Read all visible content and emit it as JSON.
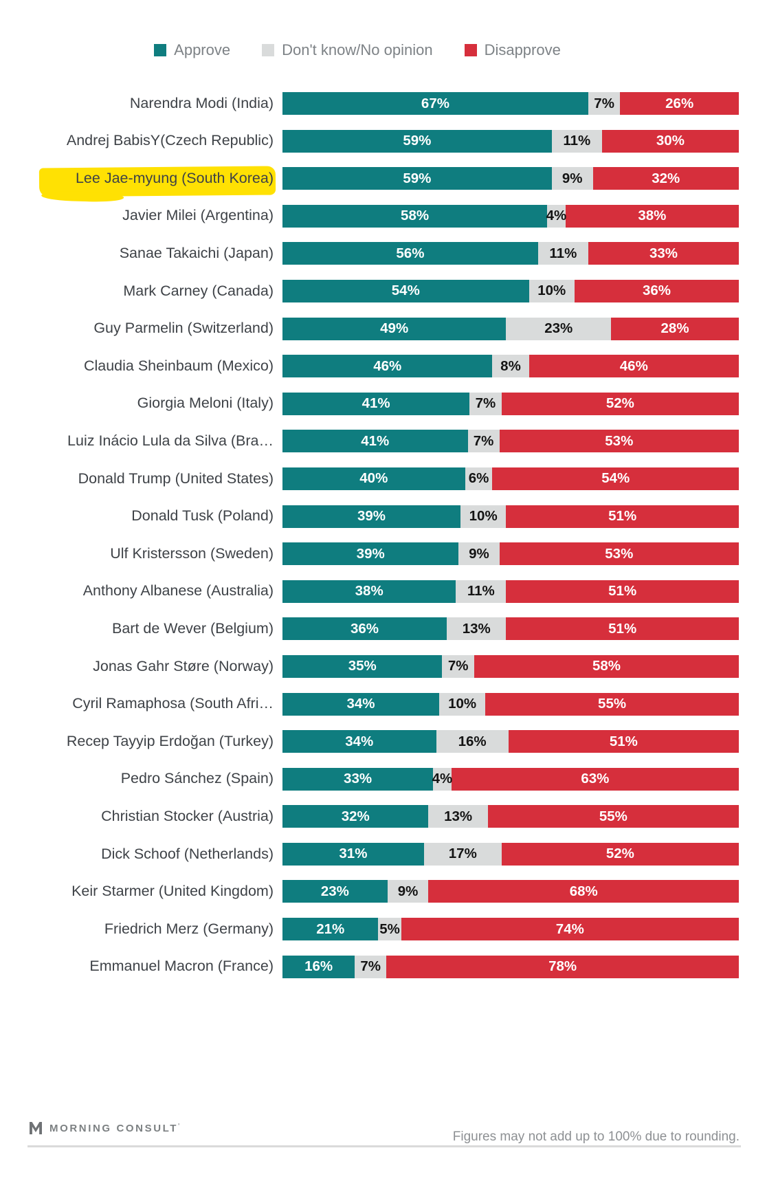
{
  "legend": {
    "items": [
      {
        "key": "approve",
        "label": "Approve",
        "color": "#0f7d7f"
      },
      {
        "key": "dk",
        "label": "Don't know/No opinion",
        "color": "#d9dbdb"
      },
      {
        "key": "disapprove",
        "label": "Disapprove",
        "color": "#d62f3c"
      }
    ]
  },
  "chart_data": {
    "type": "bar",
    "orientation": "horizontal",
    "stacked": true,
    "unit": "%",
    "xlim": [
      0,
      100
    ],
    "grid": false,
    "legend_position": "top-center",
    "series_names": [
      "Approve",
      "Don't know/No opinion",
      "Disapprove"
    ],
    "highlighted_category": "Lee Jae-myung (South Korea)",
    "rows": [
      {
        "leader": "Narendra Modi (India)",
        "approve": 67,
        "dk": 7,
        "disapprove": 26,
        "highlighted": false
      },
      {
        "leader": "Andrej BabisY(Czech Republic)",
        "approve": 59,
        "dk": 11,
        "disapprove": 30,
        "highlighted": false
      },
      {
        "leader": "Lee Jae-myung (South Korea)",
        "approve": 59,
        "dk": 9,
        "disapprove": 32,
        "highlighted": true
      },
      {
        "leader": "Javier Milei (Argentina)",
        "approve": 58,
        "dk": 4,
        "disapprove": 38,
        "highlighted": false
      },
      {
        "leader": "Sanae Takaichi (Japan)",
        "approve": 56,
        "dk": 11,
        "disapprove": 33,
        "highlighted": false
      },
      {
        "leader": "Mark Carney (Canada)",
        "approve": 54,
        "dk": 10,
        "disapprove": 36,
        "highlighted": false
      },
      {
        "leader": "Guy Parmelin (Switzerland)",
        "approve": 49,
        "dk": 23,
        "disapprove": 28,
        "highlighted": false
      },
      {
        "leader": "Claudia Sheinbaum (Mexico)",
        "approve": 46,
        "dk": 8,
        "disapprove": 46,
        "highlighted": false
      },
      {
        "leader": "Giorgia Meloni (Italy)",
        "approve": 41,
        "dk": 7,
        "disapprove": 52,
        "highlighted": false
      },
      {
        "leader": "Luiz Inácio Lula da Silva (Bra…",
        "approve": 41,
        "dk": 7,
        "disapprove": 53,
        "highlighted": false
      },
      {
        "leader": "Donald Trump (United States)",
        "approve": 40,
        "dk": 6,
        "disapprove": 54,
        "highlighted": false
      },
      {
        "leader": "Donald Tusk (Poland)",
        "approve": 39,
        "dk": 10,
        "disapprove": 51,
        "highlighted": false
      },
      {
        "leader": "Ulf Kristersson (Sweden)",
        "approve": 39,
        "dk": 9,
        "disapprove": 53,
        "highlighted": false
      },
      {
        "leader": "Anthony Albanese (Australia)",
        "approve": 38,
        "dk": 11,
        "disapprove": 51,
        "highlighted": false
      },
      {
        "leader": "Bart de Wever (Belgium)",
        "approve": 36,
        "dk": 13,
        "disapprove": 51,
        "highlighted": false
      },
      {
        "leader": "Jonas Gahr Støre (Norway)",
        "approve": 35,
        "dk": 7,
        "disapprove": 58,
        "highlighted": false
      },
      {
        "leader": "Cyril Ramaphosa (South Afri…",
        "approve": 34,
        "dk": 10,
        "disapprove": 55,
        "highlighted": false
      },
      {
        "leader": "Recep Tayyip Erdoğan (Turkey)",
        "approve": 34,
        "dk": 16,
        "disapprove": 51,
        "highlighted": false
      },
      {
        "leader": "Pedro Sánchez (Spain)",
        "approve": 33,
        "dk": 4,
        "disapprove": 63,
        "highlighted": false
      },
      {
        "leader": "Christian Stocker (Austria)",
        "approve": 32,
        "dk": 13,
        "disapprove": 55,
        "highlighted": false
      },
      {
        "leader": "Dick Schoof (Netherlands)",
        "approve": 31,
        "dk": 17,
        "disapprove": 52,
        "highlighted": false
      },
      {
        "leader": "Keir Starmer (United Kingdom)",
        "approve": 23,
        "dk": 9,
        "disapprove": 68,
        "highlighted": false
      },
      {
        "leader": "Friedrich Merz (Germany)",
        "approve": 21,
        "dk": 5,
        "disapprove": 74,
        "highlighted": false
      },
      {
        "leader": "Emmanuel Macron (France)",
        "approve": 16,
        "dk": 7,
        "disapprove": 78,
        "highlighted": false
      }
    ]
  },
  "footer": {
    "brand": "MORNING CONSULT",
    "brand_mark": "'",
    "note": "Figures may not add up to 100% due to rounding."
  },
  "colors": {
    "approve": "#0f7d7f",
    "dont_know": "#d9dbdb",
    "disapprove": "#d62f3c",
    "highlight": "#ffe103",
    "label_text": "#3e4247",
    "legend_text": "#7d8286"
  }
}
